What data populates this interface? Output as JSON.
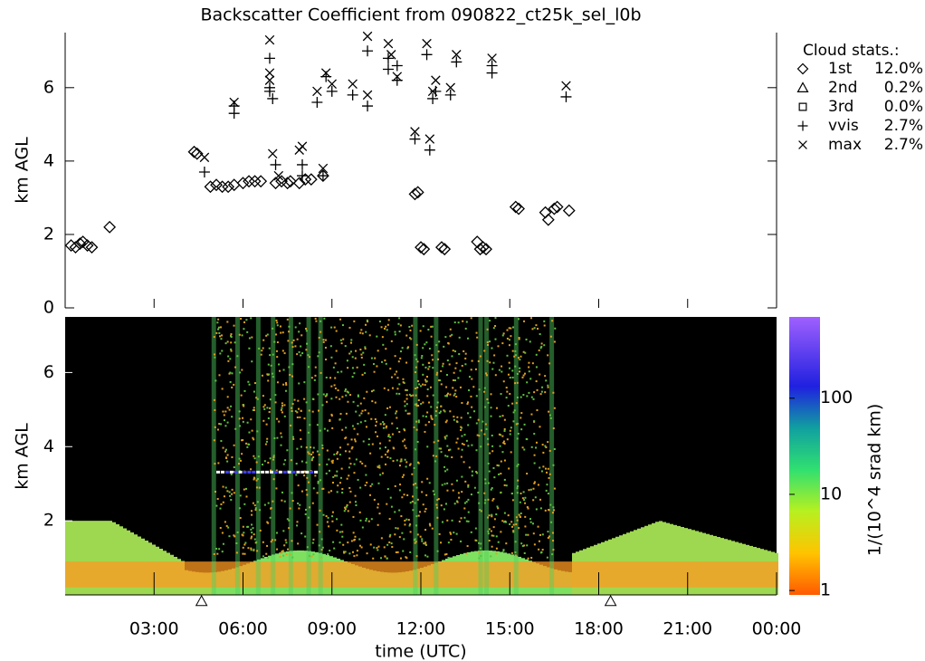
{
  "chart_data": [
    {
      "type": "scatter",
      "title": "Backscatter Coefficient from 090822_ct25k_sel_l0b",
      "ylabel": "km AGL",
      "legend_title": "Cloud stats.:",
      "xlim": [
        0,
        24
      ],
      "ylim": [
        0,
        7.5
      ],
      "yticks": [
        0,
        2,
        4,
        6
      ],
      "series": [
        {
          "name": "1st",
          "stat": "12.0%",
          "marker": "diamond",
          "x": [
            0.2,
            0.35,
            0.5,
            0.6,
            0.75,
            0.9,
            1.5,
            4.35,
            4.45,
            4.9,
            5.1,
            5.3,
            5.5,
            5.7,
            6.0,
            6.2,
            6.4,
            6.6,
            7.1,
            7.3,
            7.5,
            7.6,
            7.9,
            8.1,
            8.3,
            8.7,
            11.8,
            11.9,
            12.0,
            12.1,
            12.7,
            12.8,
            13.9,
            14.0,
            14.1,
            14.2,
            15.2,
            15.3,
            16.2,
            16.3,
            16.5,
            16.6,
            17.0
          ],
          "y": [
            1.7,
            1.65,
            1.75,
            1.8,
            1.7,
            1.65,
            2.2,
            4.25,
            4.2,
            3.3,
            3.35,
            3.3,
            3.3,
            3.35,
            3.4,
            3.45,
            3.45,
            3.45,
            3.4,
            3.45,
            3.4,
            3.45,
            3.4,
            3.5,
            3.5,
            3.6,
            3.1,
            3.15,
            1.65,
            1.6,
            1.65,
            1.6,
            1.8,
            1.6,
            1.65,
            1.6,
            2.75,
            2.7,
            2.6,
            2.4,
            2.7,
            2.75,
            2.65
          ]
        },
        {
          "name": "2nd",
          "stat": "0.2%",
          "marker": "triangle",
          "x": [],
          "y": []
        },
        {
          "name": "3rd",
          "stat": "0.0%",
          "marker": "square",
          "x": [],
          "y": []
        },
        {
          "name": "vvis",
          "stat": "2.7%",
          "marker": "plus",
          "x": [
            4.7,
            5.7,
            5.7,
            6.9,
            6.9,
            6.9,
            7.0,
            7.1,
            8.0,
            8.0,
            8.5,
            8.7,
            8.8,
            9.0,
            9.7,
            10.2,
            10.2,
            10.9,
            10.9,
            11.2,
            11.2,
            11.8,
            12.2,
            12.3,
            12.4,
            12.5,
            13.0,
            13.2,
            14.4,
            14.4,
            16.9
          ],
          "y": [
            3.7,
            5.3,
            5.5,
            6.0,
            5.9,
            6.8,
            5.7,
            3.9,
            3.9,
            3.6,
            5.6,
            3.6,
            6.3,
            5.9,
            5.8,
            7.0,
            5.5,
            6.8,
            6.5,
            6.6,
            6.2,
            4.6,
            6.9,
            4.3,
            5.7,
            5.9,
            5.8,
            6.7,
            6.4,
            6.6,
            5.75
          ]
        },
        {
          "name": "max",
          "stat": "2.7%",
          "marker": "cross",
          "x": [
            4.7,
            5.7,
            6.9,
            6.9,
            6.9,
            7.0,
            7.2,
            7.9,
            8.0,
            8.5,
            8.7,
            8.8,
            9.0,
            9.7,
            10.2,
            10.2,
            10.9,
            11.0,
            11.2,
            11.8,
            12.2,
            12.3,
            12.4,
            12.5,
            13.0,
            13.2,
            14.4,
            16.9
          ],
          "y": [
            4.1,
            5.6,
            7.3,
            6.4,
            6.2,
            4.2,
            3.6,
            4.3,
            4.4,
            5.9,
            3.8,
            6.4,
            6.1,
            6.1,
            7.4,
            5.8,
            7.2,
            6.9,
            6.3,
            4.8,
            7.2,
            4.6,
            5.9,
            6.2,
            6.0,
            6.9,
            6.8,
            6.05
          ]
        }
      ]
    },
    {
      "type": "heatmap",
      "ylabel": "km AGL",
      "xlabel": "time (UTC)",
      "xlim": [
        0,
        24
      ],
      "ylim": [
        0,
        7.5
      ],
      "yticks": [
        2,
        4,
        6
      ],
      "xticks": [
        {
          "value": 3,
          "label": "03:00"
        },
        {
          "value": 6,
          "label": "06:00"
        },
        {
          "value": 9,
          "label": "09:00"
        },
        {
          "value": 12,
          "label": "12:00"
        },
        {
          "value": 15,
          "label": "15:00"
        },
        {
          "value": 18,
          "label": "18:00"
        },
        {
          "value": 21,
          "label": "21:00"
        },
        {
          "value": 24,
          "label": "00:00"
        }
      ],
      "events_x": [
        4.6,
        18.4
      ],
      "colorbar": {
        "label": "1/(10^4 srad km)",
        "log": true,
        "lim": [
          0.9,
          700
        ],
        "ticks": [
          1,
          10,
          100
        ]
      }
    }
  ]
}
